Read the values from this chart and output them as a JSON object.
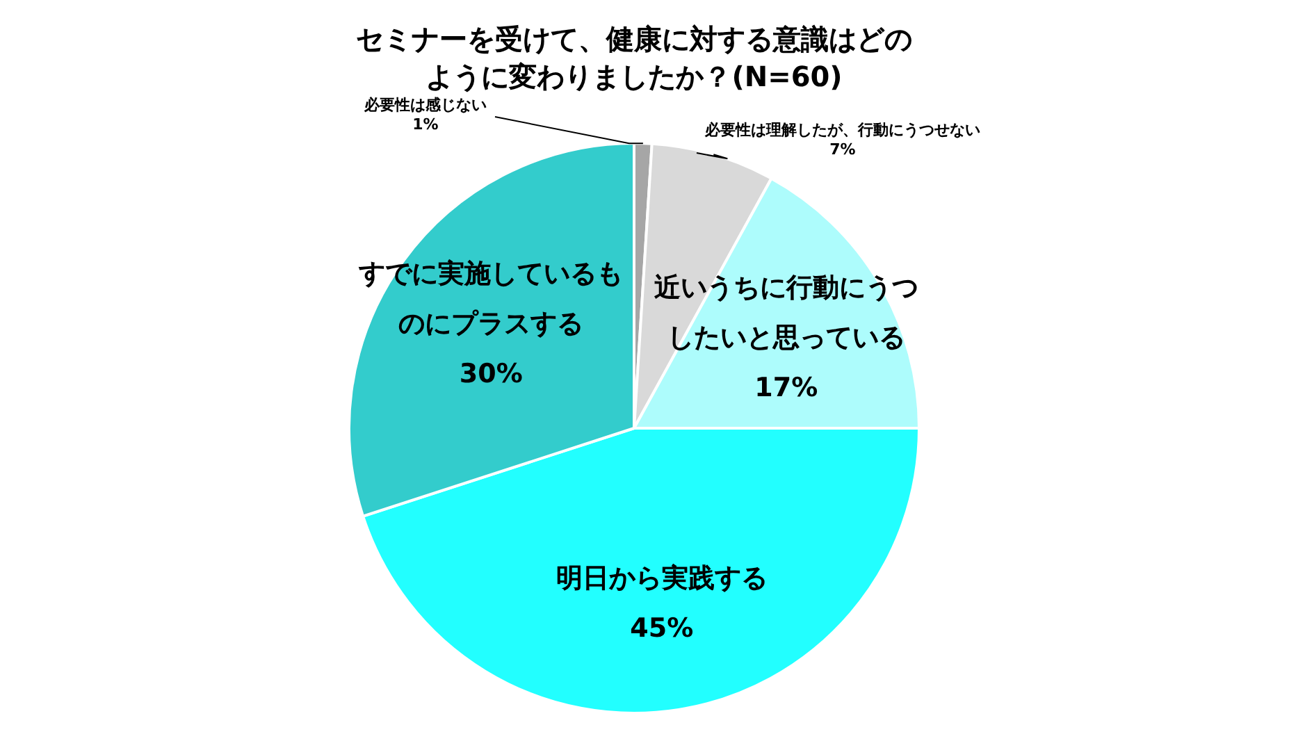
{
  "chart_data": {
    "type": "pie",
    "title": "セミナーを受けて、健康に対する意識はどのように変わりましたか？(N=60)",
    "categories": [
      "必要性は感じない",
      "必要性は理解したが、行動にうつせない",
      "近いうちに行動にうつしたいと思っている",
      "明日から実践する",
      "すでに実施しているものにプラスする"
    ],
    "values": [
      1,
      7,
      17,
      45,
      30
    ],
    "colors": [
      "#a6a6a6",
      "#d9d9d9",
      "#adfcfc",
      "#22ffff",
      "#33cccc"
    ],
    "value_labels": [
      "1%",
      "7%",
      "17%",
      "45%",
      "30%"
    ]
  }
}
